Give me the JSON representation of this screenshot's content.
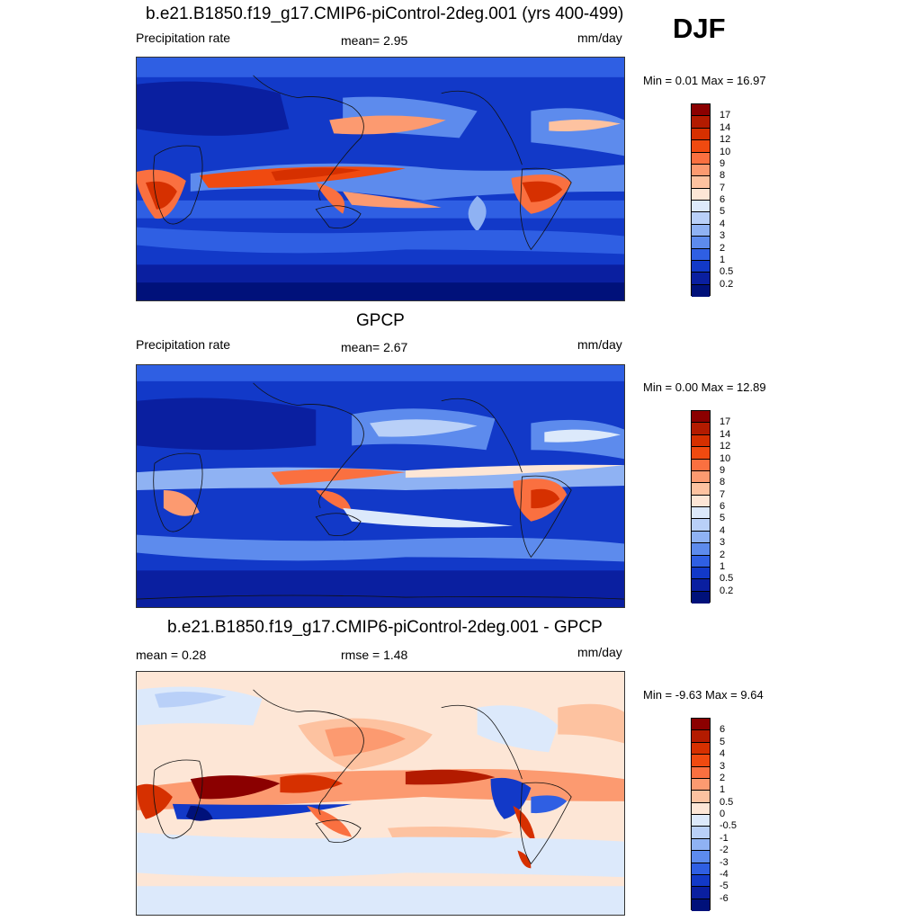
{
  "season": "DJF",
  "panels": [
    {
      "title": "b.e21.B1850.f19_g17.CMIP6-piControl-2deg.001 (yrs 400-499)",
      "left_label": "Precipitation rate",
      "center_label": "mean=   2.95",
      "right_label": "mm/day",
      "minmax": "Min =   0.01 Max =  16.97",
      "colorbar": {
        "labels": [
          "17",
          "14",
          "12",
          "10",
          "9",
          "8",
          "7",
          "6",
          "5",
          "4",
          "3",
          "2",
          "1",
          "0.5",
          "0.2"
        ],
        "colors": [
          "#8b0000",
          "#b31b00",
          "#d63000",
          "#f04a10",
          "#fa7040",
          "#fc9a70",
          "#fdc2a0",
          "#fde6d6",
          "#dce9fb",
          "#b9d0f8",
          "#8fb2f3",
          "#5d8bed",
          "#2f5fe3",
          "#1239c8",
          "#0a1fa0",
          "#00117a"
        ]
      }
    },
    {
      "title": "GPCP",
      "left_label": "Precipitation rate",
      "center_label": "mean=   2.67",
      "right_label": "mm/day",
      "minmax": "Min =   0.00 Max =  12.89",
      "colorbar": {
        "labels": [
          "17",
          "14",
          "12",
          "10",
          "9",
          "8",
          "7",
          "6",
          "5",
          "4",
          "3",
          "2",
          "1",
          "0.5",
          "0.2"
        ],
        "colors": [
          "#8b0000",
          "#b31b00",
          "#d63000",
          "#f04a10",
          "#fa7040",
          "#fc9a70",
          "#fdc2a0",
          "#fde6d6",
          "#dce9fb",
          "#b9d0f8",
          "#8fb2f3",
          "#5d8bed",
          "#2f5fe3",
          "#1239c8",
          "#0a1fa0",
          "#00117a"
        ]
      }
    },
    {
      "title": "b.e21.B1850.f19_g17.CMIP6-piControl-2deg.001 - GPCP",
      "left_label": "mean =   0.28",
      "center_label": "rmse =   1.48",
      "right_label": "mm/day",
      "minmax": "Min =  -9.63 Max =   9.64",
      "colorbar": {
        "labels": [
          "6",
          "5",
          "4",
          "3",
          "2",
          "1",
          "0.5",
          "0",
          "-0.5",
          "-1",
          "-2",
          "-3",
          "-4",
          "-5",
          "-6"
        ],
        "colors": [
          "#8b0000",
          "#b31b00",
          "#d63000",
          "#f04a10",
          "#fa7040",
          "#fc9a70",
          "#fdc2a0",
          "#fde6d6",
          "#dce9fb",
          "#b9d0f8",
          "#8fb2f3",
          "#5d8bed",
          "#2f5fe3",
          "#1239c8",
          "#0a1fa0",
          "#00117a"
        ]
      }
    }
  ]
}
